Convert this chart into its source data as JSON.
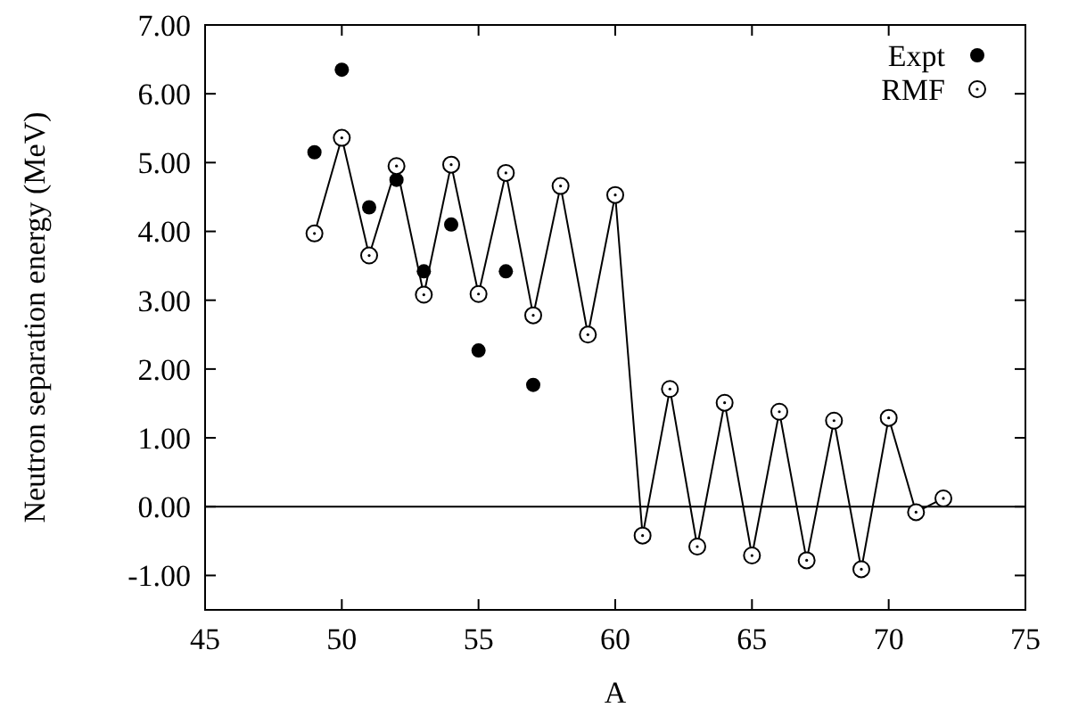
{
  "chart_data": {
    "type": "scatter",
    "xlabel": "A",
    "ylabel": "Neutron separation energy (MeV)",
    "xlim": [
      45,
      75
    ],
    "xticks": [
      45,
      50,
      55,
      60,
      65,
      70,
      75
    ],
    "ylim": [
      -1.5,
      7
    ],
    "yticks": [
      {
        "value": -1,
        "label": "-1.00"
      },
      {
        "value": 0,
        "label": "0.00"
      },
      {
        "value": 1,
        "label": "1.00"
      },
      {
        "value": 2,
        "label": "2.00"
      },
      {
        "value": 3,
        "label": "3.00"
      },
      {
        "value": 4,
        "label": "4.00"
      },
      {
        "value": 5,
        "label": "5.00"
      },
      {
        "value": 6,
        "label": "6.00"
      },
      {
        "value": 7,
        "label": "7.00"
      }
    ],
    "legend": "top right",
    "marker": "circle",
    "ref_lines": [
      {
        "axis": "y",
        "value": 0,
        "color": "#000000"
      }
    ],
    "series": [
      {
        "name": "Expt",
        "color": "#000000",
        "x": [
          49,
          50,
          51,
          52,
          53,
          54,
          55,
          56,
          57
        ],
        "values": [
          5.15,
          6.35,
          4.35,
          4.75,
          3.42,
          4.1,
          2.27,
          3.42,
          1.77
        ]
      },
      {
        "name": "RMF",
        "type": "line",
        "color": "#000000",
        "x": [
          49,
          50,
          51,
          52,
          53,
          54,
          55,
          56,
          57,
          58,
          59,
          60,
          61,
          62,
          63,
          64,
          65,
          66,
          67,
          68,
          69,
          70,
          71,
          72
        ],
        "values": [
          3.97,
          5.36,
          3.65,
          4.95,
          3.08,
          4.97,
          3.09,
          4.85,
          2.78,
          4.66,
          2.5,
          4.53,
          -0.42,
          1.71,
          -0.58,
          1.51,
          -0.71,
          1.38,
          -0.78,
          1.25,
          -0.91,
          1.29,
          -0.08,
          0.12
        ]
      }
    ]
  }
}
